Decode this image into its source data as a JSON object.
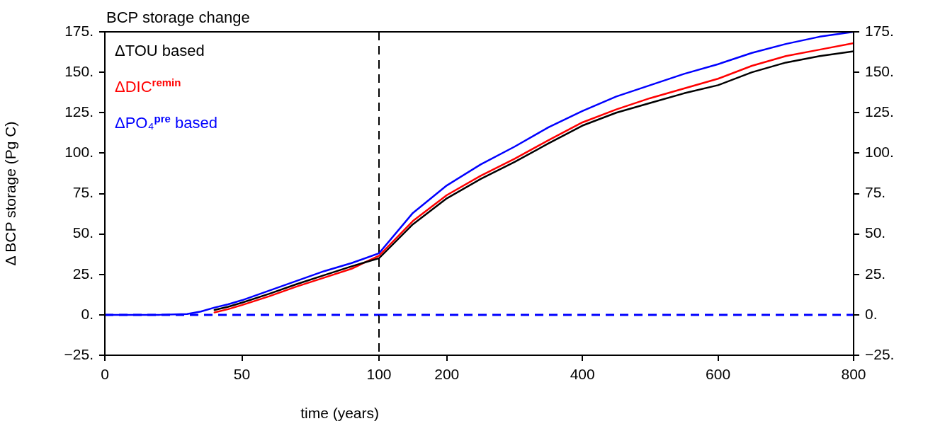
{
  "chart_data": [
    {
      "type": "line",
      "title": "BCP storage change",
      "xlabel": "time (years)",
      "ylabel": "Δ BCP storage (Pg C)",
      "x": [
        0,
        10,
        20,
        30,
        35,
        40,
        45,
        50,
        60,
        70,
        80,
        90,
        100
      ],
      "series": [
        {
          "name": "ΔTOU based",
          "color": "#000000",
          "values": [
            null,
            null,
            null,
            null,
            null,
            3,
            5,
            7.5,
            13,
            19,
            24.5,
            30,
            35
          ]
        },
        {
          "name": "ΔDIC$^{remin}$",
          "color": "#ff0000",
          "values": [
            null,
            null,
            null,
            null,
            null,
            1.5,
            3.5,
            6,
            11.5,
            17.5,
            23,
            28.5,
            36.5
          ]
        },
        {
          "name": "ΔPO₄$^{pre}$ based",
          "color": "#0000ff",
          "values": [
            0,
            0,
            0,
            0.5,
            2,
            4.5,
            6.5,
            9,
            15,
            21,
            27,
            32,
            38
          ]
        }
      ],
      "xlim": [
        0,
        100
      ],
      "xticks": [
        0,
        50,
        100
      ],
      "ylim": [
        -25,
        175
      ],
      "yticks": [
        {
          "value": -25,
          "label": "−25."
        },
        {
          "value": 0,
          "label": "0."
        },
        {
          "value": 25,
          "label": "25."
        },
        {
          "value": 50,
          "label": "50."
        },
        {
          "value": 75,
          "label": "75."
        },
        {
          "value": 100,
          "label": "100."
        },
        {
          "value": 125,
          "label": "125."
        },
        {
          "value": 150,
          "label": "150."
        },
        {
          "value": 175,
          "label": "175."
        }
      ],
      "ref_lines": [
        {
          "axis": "y",
          "value": 0,
          "color": "#0000ff",
          "line_style": "dashed"
        },
        {
          "axis": "x",
          "value": 100,
          "color": "#000000",
          "line_style": "dashed"
        }
      ],
      "legend": "top left",
      "grid": false,
      "line_style": "solid",
      "marker": "none"
    },
    {
      "type": "line",
      "x": [
        100,
        150,
        200,
        250,
        300,
        350,
        400,
        450,
        500,
        550,
        600,
        650,
        700,
        750,
        800
      ],
      "series": [
        {
          "color": "#000000",
          "axis": "y2",
          "values": [
            35,
            56,
            72,
            84,
            94.5,
            106,
            117,
            125,
            131,
            137,
            142,
            150,
            156,
            160,
            163
          ]
        },
        {
          "color": "#ff0000",
          "axis": "y2",
          "values": [
            36.5,
            58,
            74,
            86,
            96.5,
            108,
            119,
            127,
            134,
            140,
            146,
            154,
            160,
            164,
            168
          ]
        },
        {
          "color": "#0000ff",
          "axis": "y2",
          "values": [
            38,
            63,
            80,
            93,
            104,
            116,
            126,
            135,
            142,
            149,
            155,
            162,
            167.5,
            172,
            175
          ]
        }
      ],
      "xlim": [
        100,
        800
      ],
      "xticks": [
        200,
        400,
        600,
        800
      ],
      "y2lim": [
        -25,
        175
      ],
      "y2ticks": [
        {
          "value": -25,
          "label": "−25."
        },
        {
          "value": 0,
          "label": "0."
        },
        {
          "value": 25,
          "label": "25."
        },
        {
          "value": 50,
          "label": "50."
        },
        {
          "value": 75,
          "label": "75."
        },
        {
          "value": 100,
          "label": "100."
        },
        {
          "value": 125,
          "label": "125."
        },
        {
          "value": 150,
          "label": "150."
        },
        {
          "value": 175,
          "label": "175."
        }
      ],
      "ref_lines": [
        {
          "axis": "y2",
          "value": 0,
          "color": "#0000ff",
          "line_style": "dashed"
        }
      ],
      "grid": false,
      "line_style": "solid",
      "marker": "none"
    }
  ]
}
